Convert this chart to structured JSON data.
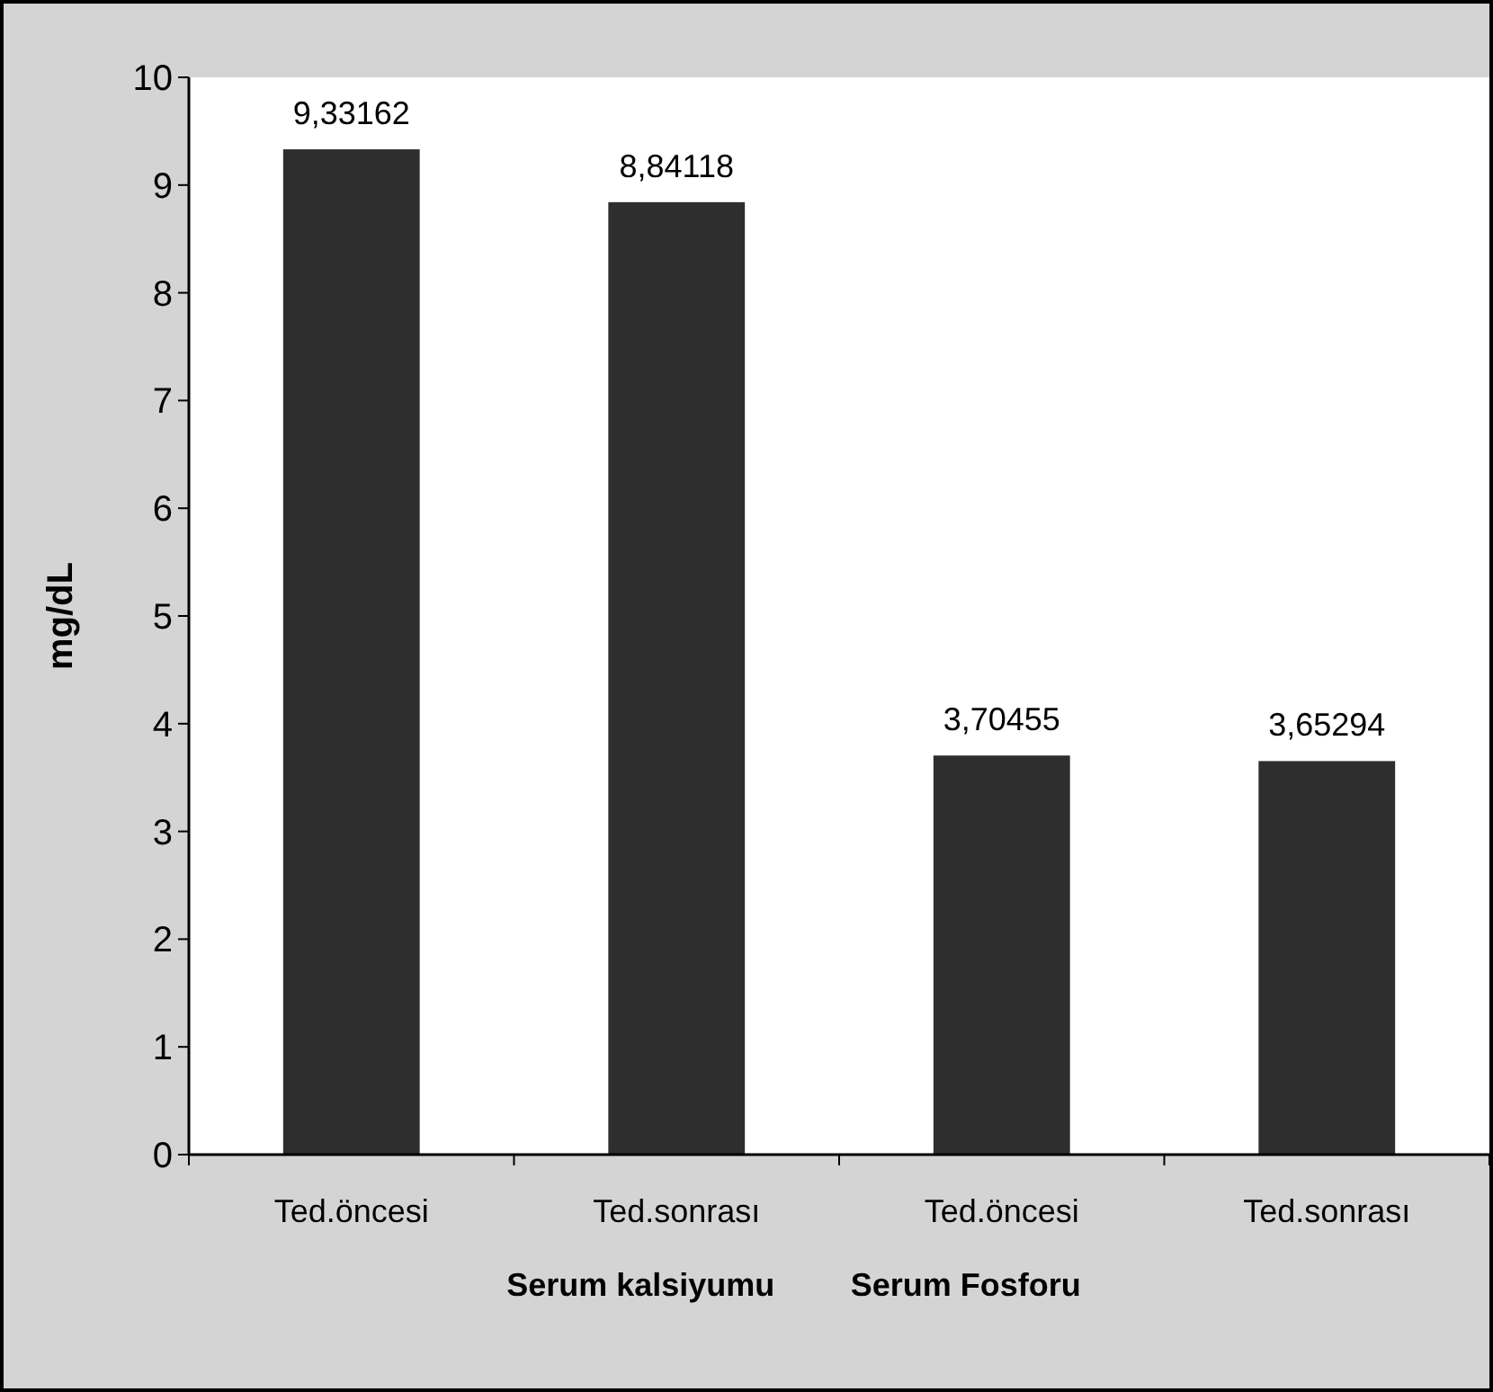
{
  "chart_data": {
    "type": "bar",
    "ylabel": "mg/dL",
    "categories": [
      "Ted.öncesi",
      "Ted.sonrası",
      "Ted.öncesi",
      "Ted.sonrası"
    ],
    "values": [
      9.33162,
      8.84118,
      3.70455,
      3.65294
    ],
    "value_labels": [
      "9,33162",
      "8,84118",
      "3,70455",
      "3,65294"
    ],
    "color": "#2e2e2e",
    "ylim": [
      0,
      10
    ],
    "yticks": [
      0,
      1,
      2,
      3,
      4,
      5,
      6,
      7,
      8,
      9,
      10
    ],
    "annotations": [
      "Serum kalsiyumu",
      "Serum Fosforu"
    ]
  }
}
